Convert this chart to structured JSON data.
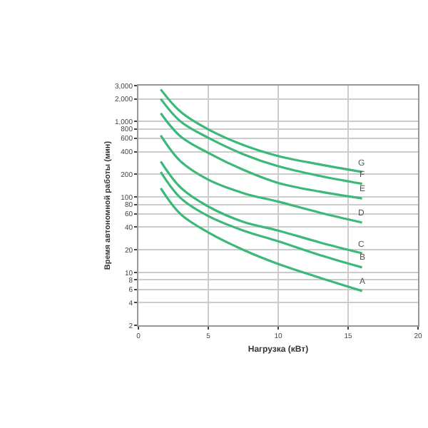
{
  "chart_data": {
    "type": "line",
    "xlabel": "Нагрузка (кВт)",
    "ylabel": "Время автономной работы (мин)",
    "log": "y",
    "grid": true,
    "legend": false,
    "marker": "none",
    "line_style": "solid",
    "xlim": [
      0,
      20
    ],
    "xticks": [
      0,
      5,
      10,
      15,
      20
    ],
    "ylim": [
      2,
      3000
    ],
    "yticks": [
      2,
      4,
      6,
      8,
      10,
      20,
      40,
      60,
      80,
      100,
      200,
      400,
      600,
      800,
      {
        "value": 1000,
        "label": "1,000"
      },
      {
        "value": 2000,
        "label": "2,000"
      },
      {
        "value": 3000,
        "label": "3,000"
      }
    ],
    "x": [
      1.6,
      3,
      5,
      7.5,
      10,
      13,
      16
    ],
    "series": [
      {
        "name": "A",
        "color": "#3cb878",
        "values": [
          131,
          60,
          34,
          20,
          13,
          8.5,
          5.7
        ]
      },
      {
        "name": "B",
        "color": "#3cb878",
        "values": [
          215,
          98,
          56,
          36,
          26,
          17,
          11.7
        ]
      },
      {
        "name": "C",
        "color": "#3cb878",
        "values": [
          296,
          135,
          75,
          47,
          36,
          25,
          18
        ]
      },
      {
        "name": "D",
        "color": "#3cb878",
        "values": [
          655,
          300,
          170,
          113,
          87,
          62,
          46
        ]
      },
      {
        "name": "E",
        "color": "#3cb878",
        "values": [
          1290,
          640,
          385,
          230,
          154,
          118,
          96
        ]
      },
      {
        "name": "F",
        "color": "#3cb878",
        "values": [
          2000,
          1010,
          610,
          370,
          256,
          190,
          150
        ]
      },
      {
        "name": "G",
        "color": "#3cb878",
        "values": [
          2670,
          1360,
          790,
          490,
          350,
          270,
          215
        ]
      }
    ]
  }
}
